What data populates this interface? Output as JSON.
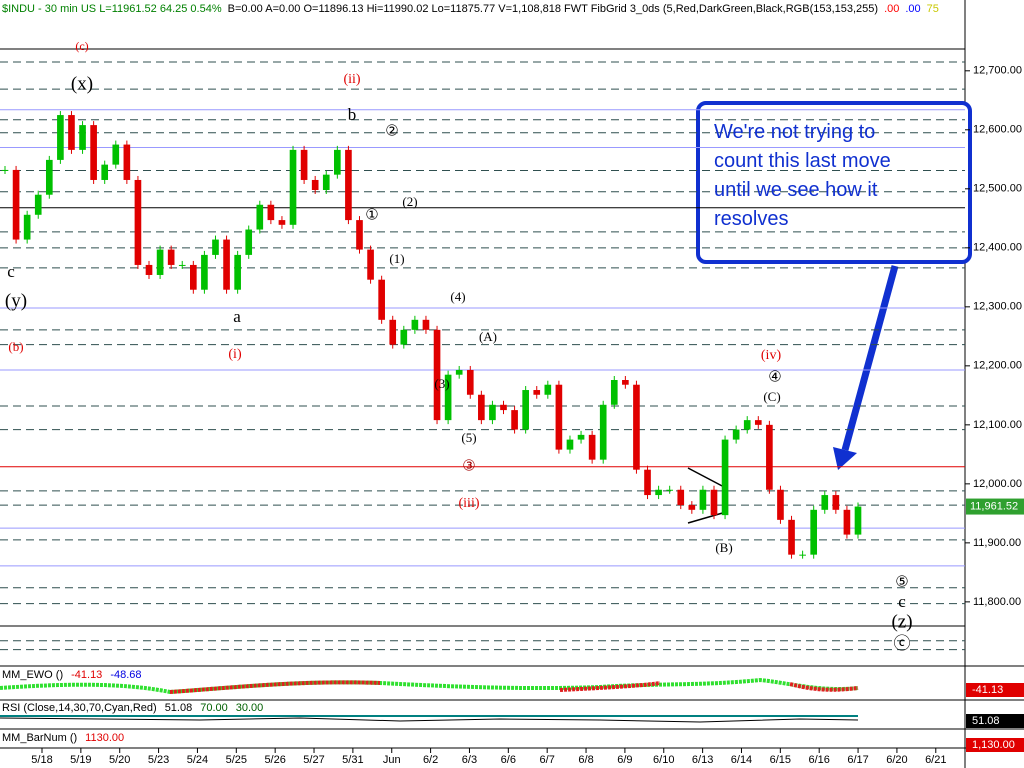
{
  "header": {
    "items": [
      {
        "text": "$INDU - 30 min  US  L=11961.52  64.25  0.54%",
        "color": "#008000"
      },
      {
        "text": "B=0.00  A=0.00  O=11896.13  Hi=11990.02  Lo=11875.77  V=1,108,818  FWT FibGrid 3_0ds (5,Red,DarkGreen,Black,RGB(153,153,255)",
        "color": "#000000"
      },
      {
        "text": ".00",
        "color": "#ff0000"
      },
      {
        "text": ".00",
        "color": "#0000ff"
      },
      {
        "text": "75",
        "color": "#c8c800"
      }
    ]
  },
  "chart_data": {
    "type": "candlestick",
    "closes": [
      12532,
      12414,
      12456,
      12490,
      12549,
      12625,
      12566,
      12608,
      12515,
      12541,
      12575,
      12515,
      12371,
      12354,
      12397,
      12371,
      12371,
      12329,
      12388,
      12414,
      12329,
      12388,
      12431,
      12473,
      12447,
      12439,
      12566,
      12515,
      12498,
      12524,
      12566,
      12447,
      12397,
      12346,
      12278,
      12236,
      12261,
      12278,
      12261,
      12108,
      12185,
      12193,
      12151,
      12108,
      12134,
      12125,
      12092,
      12159,
      12151,
      12168,
      12058,
      12075,
      12083,
      12041,
      12134,
      12176,
      12168,
      12024,
      11981,
      11990,
      11990,
      11964,
      11956,
      11990,
      11947,
      12075,
      12092,
      12108,
      12100,
      11990,
      11939,
      11880,
      11880,
      11956,
      11981,
      11956,
      11914,
      11961.52
    ],
    "up_color": "#00c000",
    "down_color": "#e00000",
    "ylim": [
      11693,
      12820
    ],
    "yticks": [
      {
        "value": 11800,
        "label": "11,800.00"
      },
      {
        "value": 11900,
        "label": "11,900.00"
      },
      {
        "value": 12000,
        "label": "12,000.00"
      },
      {
        "value": 12100,
        "label": "12,100.00"
      },
      {
        "value": 12200,
        "label": "12,200.00"
      },
      {
        "value": 12300,
        "label": "12,300.00"
      },
      {
        "value": 12400,
        "label": "12,400.00"
      },
      {
        "value": 12500,
        "label": "12,500.00"
      },
      {
        "value": 12600,
        "label": "12,600.00"
      },
      {
        "value": 12700,
        "label": "12,700.00"
      }
    ],
    "last": {
      "value": 11961.52,
      "label": "11,961.52",
      "color": "#2fa02f"
    },
    "categories": [
      "5/18",
      "5/19",
      "5/20",
      "5/23",
      "5/24",
      "5/25",
      "5/26",
      "5/27",
      "5/31",
      "Jun",
      "6/2",
      "6/3",
      "6/6",
      "6/7",
      "6/8",
      "6/9",
      "6/10",
      "6/13",
      "6/14",
      "6/15",
      "6/16",
      "6/17",
      "6/20",
      "6/21"
    ],
    "levels": [
      {
        "color": "#000000",
        "dash": false,
        "values": [
          12737,
          12468,
          11759
        ]
      },
      {
        "color": "#e00000",
        "dash": false,
        "values": [
          12029
        ]
      },
      {
        "color": "#9999ff",
        "dash": false,
        "values": [
          12634,
          12570,
          12298,
          12193,
          11925,
          11861
        ]
      },
      {
        "color": "#2f4f4f",
        "dash": true,
        "values": [
          12715,
          12669,
          12617,
          12595,
          12531,
          12495,
          12427,
          12400,
          12366,
          12261,
          12236,
          12132,
          12092,
          11988,
          11964,
          11905,
          11824,
          11797,
          11734,
          11719
        ]
      }
    ],
    "annotations": [
      {
        "text": "(c)",
        "color": "#e00000"
      },
      {
        "text": "(x)",
        "color": "#000000"
      },
      {
        "text": "(ii)",
        "color": "#e00000"
      },
      {
        "text": "b",
        "color": "#000000"
      },
      {
        "text": "②",
        "color": "#000000"
      },
      {
        "text": "①",
        "color": "#000000"
      },
      {
        "text": "(2)",
        "color": "#000000"
      },
      {
        "text": "(1)",
        "color": "#000000"
      },
      {
        "text": "c",
        "color": "#000000"
      },
      {
        "text": "(y)",
        "color": "#000000"
      },
      {
        "text": "a",
        "color": "#000000"
      },
      {
        "text": "(b)",
        "color": "#e00000"
      },
      {
        "text": "(i)",
        "color": "#e00000"
      },
      {
        "text": "(4)",
        "color": "#000000"
      },
      {
        "text": "(A)",
        "color": "#000000"
      },
      {
        "text": "(3)",
        "color": "#000000"
      },
      {
        "text": "(iv)",
        "color": "#e00000"
      },
      {
        "text": "④",
        "color": "#000000"
      },
      {
        "text": "(C)",
        "color": "#000000"
      },
      {
        "text": "(5)",
        "color": "#000000"
      },
      {
        "text": "③",
        "color": "#a00000"
      },
      {
        "text": "(iii)",
        "color": "#e00000"
      },
      {
        "text": "(B)",
        "color": "#000000"
      },
      {
        "text": "⑤",
        "color": "#000000"
      },
      {
        "text": "c",
        "color": "#000000"
      },
      {
        "text": "(z)",
        "color": "#000000"
      },
      {
        "text": "ⓒ",
        "color": "#000000"
      }
    ]
  },
  "callout": {
    "lines": [
      "We're not trying to",
      "count this last move",
      "until we see how it",
      "resolves"
    ]
  },
  "indicators": [
    {
      "name": "MM_EWO ()",
      "values": [
        {
          "text": "-41.13",
          "color": "#e00000"
        },
        {
          "text": "-48.68",
          "color": "#0000e0"
        }
      ],
      "marker": {
        "text": "-41.13",
        "color": "#e00000"
      }
    },
    {
      "name": "RSI (Close,14,30,70,Cyan,Red)",
      "values": [
        {
          "text": "51.08",
          "color": "#000000"
        },
        {
          "text": "70.00",
          "color": "#006000"
        },
        {
          "text": "30.00",
          "color": "#006000"
        }
      ],
      "marker": {
        "text": "51.08",
        "color": "#000000"
      }
    },
    {
      "name": "MM_BarNum ()",
      "values": [
        {
          "text": "1130.00",
          "color": "#e00000"
        }
      ],
      "marker": {
        "text": "1,130.00",
        "color": "#e00000"
      }
    }
  ]
}
